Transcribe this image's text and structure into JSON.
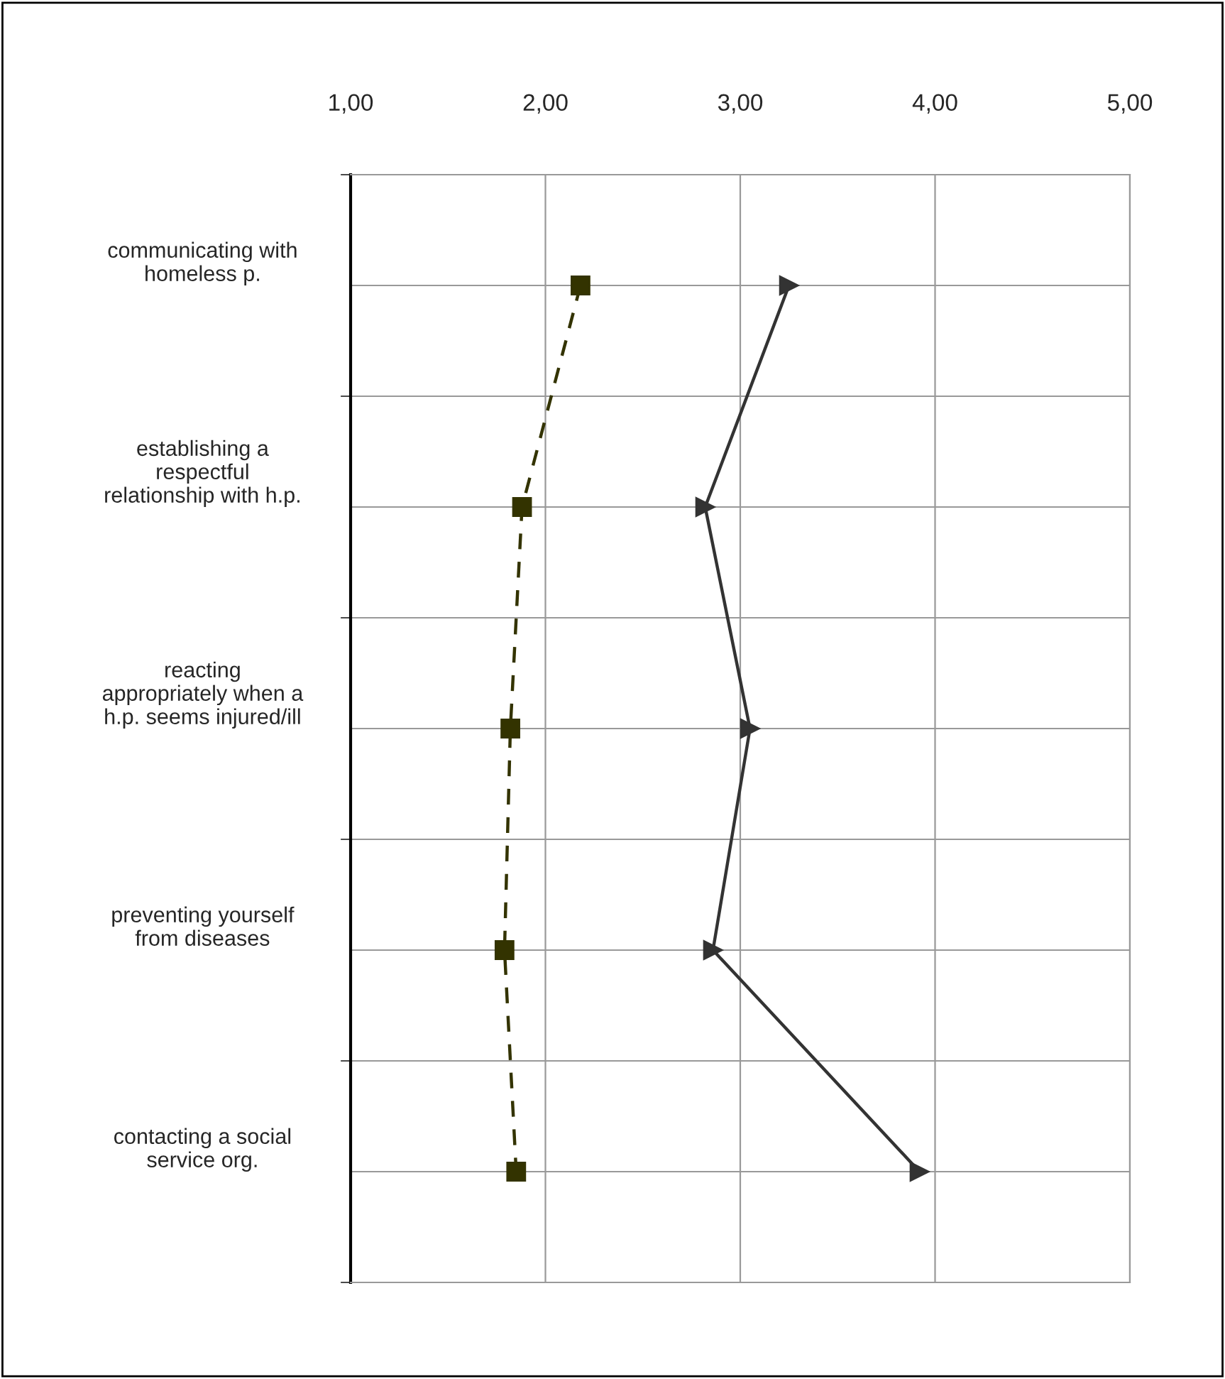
{
  "chart_data": {
    "type": "line",
    "orientation": "horizontal",
    "categories": [
      "communicating with\nhomeless p.",
      "establishing a\nrespectful\nrelationship with h.p.",
      "reacting\nappropriately when a\nh.p. seems injured/ill",
      "preventing yourself\nfrom diseases",
      "contacting a social\nservice org."
    ],
    "series": [
      {
        "color": "#333300",
        "marker": "square",
        "line_style": "dashed",
        "values": [
          2.18,
          1.88,
          1.82,
          1.79,
          1.85
        ]
      },
      {
        "color": "#333333",
        "marker": "triangle",
        "line_style": "solid",
        "values": [
          3.25,
          2.82,
          3.05,
          2.86,
          3.92
        ]
      }
    ],
    "xlim": [
      1,
      5
    ],
    "xticks": [
      {
        "value": 1,
        "label": "1,00"
      },
      {
        "value": 2,
        "label": "2,00"
      },
      {
        "value": 3,
        "label": "3,00"
      },
      {
        "value": 4,
        "label": "4,00"
      },
      {
        "value": 5,
        "label": "5,00"
      }
    ],
    "grid": true
  }
}
